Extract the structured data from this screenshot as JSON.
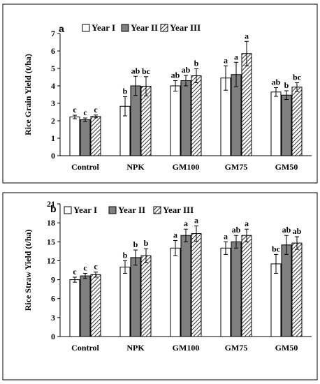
{
  "chart_data": [
    {
      "panel": "a",
      "type": "bar",
      "ylabel": "Rice Grain Yield (t/ha)",
      "ylim": [
        0,
        7
      ],
      "yticks": [
        0,
        1,
        2,
        3,
        4,
        5,
        6,
        7
      ],
      "categories": [
        "Control",
        "NPK",
        "GM100",
        "GM75",
        "GM50"
      ],
      "legend": "top-left",
      "series": [
        {
          "name": "Year I",
          "pattern": "white",
          "values": [
            2.22,
            2.83,
            4.0,
            4.45,
            3.65
          ],
          "errors": [
            0.1,
            0.55,
            0.3,
            0.7,
            0.25
          ],
          "labels": [
            "c",
            "b",
            "ab",
            "a",
            "ab"
          ]
        },
        {
          "name": "Year II",
          "pattern": "gray",
          "values": [
            2.06,
            4.0,
            4.3,
            4.65,
            3.47
          ],
          "errors": [
            0.1,
            0.55,
            0.3,
            0.7,
            0.25
          ],
          "labels": [
            "c",
            "ab",
            "ab",
            "a",
            "b"
          ]
        },
        {
          "name": "Year III",
          "pattern": "hatch",
          "values": [
            2.25,
            3.98,
            4.58,
            5.85,
            3.93
          ],
          "errors": [
            0.08,
            0.55,
            0.4,
            0.7,
            0.25
          ],
          "labels": [
            "c",
            "bc",
            "b",
            "a",
            "bc"
          ]
        }
      ]
    },
    {
      "panel": "b",
      "type": "bar",
      "ylabel": "Rice Straw Yield (t/ha)",
      "ylim": [
        0,
        21
      ],
      "yticks": [
        0,
        3,
        6,
        9,
        12,
        15,
        18,
        21
      ],
      "categories": [
        "Control",
        "NPK",
        "GM100",
        "GM75",
        "GM50"
      ],
      "legend": "top-left",
      "series": [
        {
          "name": "Year I",
          "pattern": "white",
          "values": [
            9.0,
            11.0,
            14.0,
            14.0,
            11.5
          ],
          "errors": [
            0.4,
            1.0,
            1.2,
            1.0,
            1.5
          ],
          "labels": [
            "c",
            "b",
            "a",
            "a",
            "bc"
          ]
        },
        {
          "name": "Year II",
          "pattern": "gray",
          "values": [
            9.6,
            12.5,
            16.0,
            15.0,
            14.5
          ],
          "errors": [
            0.4,
            1.2,
            1.0,
            1.0,
            1.5
          ],
          "labels": [
            "c",
            "b",
            "a",
            "ab",
            "ab"
          ]
        },
        {
          "name": "Year III",
          "pattern": "hatch",
          "values": [
            9.8,
            12.8,
            16.3,
            16.0,
            14.8
          ],
          "errors": [
            0.4,
            1.1,
            1.2,
            1.0,
            1.0
          ],
          "labels": [
            "c",
            "b",
            "a",
            "a",
            "ab"
          ]
        }
      ]
    }
  ]
}
